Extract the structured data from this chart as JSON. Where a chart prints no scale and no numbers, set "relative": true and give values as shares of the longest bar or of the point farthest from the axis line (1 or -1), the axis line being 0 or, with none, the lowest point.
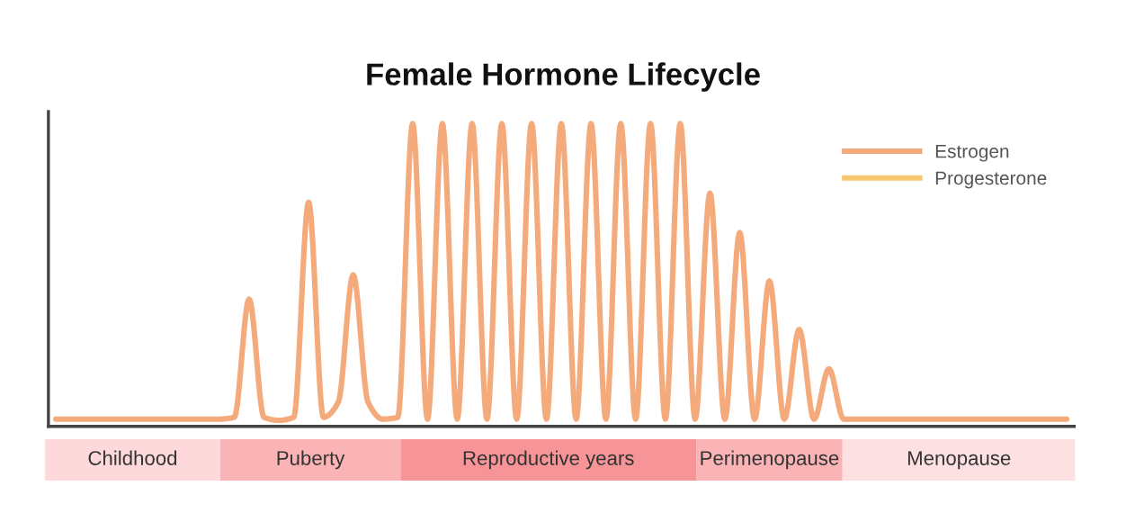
{
  "chart_data": [
    {
      "type": "line",
      "title": "Female Hormone Lifecycle",
      "relative": true,
      "legend": "top right",
      "tick_labels": false,
      "marker": "none",
      "line_style": "solid",
      "categories": [
        null,
        null,
        null,
        null,
        null,
        null,
        null,
        null,
        null,
        null,
        null,
        null,
        null,
        null,
        null,
        null,
        null,
        null,
        null,
        null,
        null,
        null,
        null,
        null,
        null,
        null,
        null,
        null,
        null,
        null,
        null,
        null,
        null,
        null,
        null,
        null,
        null,
        null,
        null,
        null,
        null,
        null,
        null,
        null,
        null,
        null,
        null,
        null,
        null,
        null,
        null,
        null,
        null,
        null,
        null,
        null,
        null,
        null,
        null,
        null,
        null,
        null,
        null,
        null,
        null,
        null,
        null,
        null,
        null
      ],
      "series": [
        {
          "name": "Estrogen",
          "color": "#f5aa7c",
          "values": [
            0.024,
            0.024,
            0.024,
            0.024,
            0.024,
            0.024,
            0.024,
            0.024,
            0.024,
            0.024,
            0.024,
            0.024,
            0.03,
            0.42,
            0.03,
            0.02,
            0.03,
            0.74,
            0.03,
            0.08,
            0.5,
            0.08,
            0.024,
            0.03,
            1,
            0.024,
            1,
            0.024,
            1,
            0.024,
            1,
            0.024,
            1,
            0.024,
            1,
            0.024,
            1,
            0.024,
            1,
            0.024,
            1,
            0.024,
            1,
            0.024,
            0.77,
            0.024,
            0.64,
            0.024,
            0.48,
            0.024,
            0.32,
            0.024,
            0.19,
            0.024,
            0.024,
            0.024,
            0.024,
            0.024,
            0.024,
            0.024,
            0.024,
            0.024,
            0.024,
            0.024,
            0.024,
            0.024,
            0.024,
            0.024,
            0.024
          ]
        },
        {
          "name": "Progesterone",
          "color": "#f5c86e",
          "values": [
            null,
            null,
            null,
            null,
            null,
            null,
            null,
            null,
            null,
            null,
            null,
            null,
            null,
            null,
            null,
            null,
            null,
            null,
            null,
            null,
            null,
            null,
            null,
            null,
            null,
            null,
            null,
            null,
            null,
            null,
            null,
            null,
            null,
            null,
            null,
            null,
            null,
            null,
            null,
            null,
            null,
            null,
            null,
            null,
            null,
            null,
            null,
            null,
            null,
            null,
            null,
            null,
            null,
            null,
            null,
            null,
            null,
            null,
            null,
            null,
            null,
            null,
            null,
            null,
            null,
            null,
            null,
            null,
            null
          ]
        }
      ]
    },
    {
      "type": "bar",
      "orientation": "horizontal",
      "stacked": true,
      "relative": true,
      "categories": [
        null
      ],
      "series": [
        {
          "name": "Childhood",
          "color": "#fdd9dc",
          "values": [
            0.17
          ]
        },
        {
          "name": "Puberty",
          "color": "#fbb4b6",
          "values": [
            0.175
          ]
        },
        {
          "name": "Reproductive years",
          "color": "#f79497",
          "values": [
            0.287
          ]
        },
        {
          "name": "Perimenopause",
          "color": "#fbb4b6",
          "values": [
            0.142
          ]
        },
        {
          "name": "Menopause",
          "color": "#fde0e2",
          "values": [
            0.226
          ]
        }
      ]
    }
  ]
}
